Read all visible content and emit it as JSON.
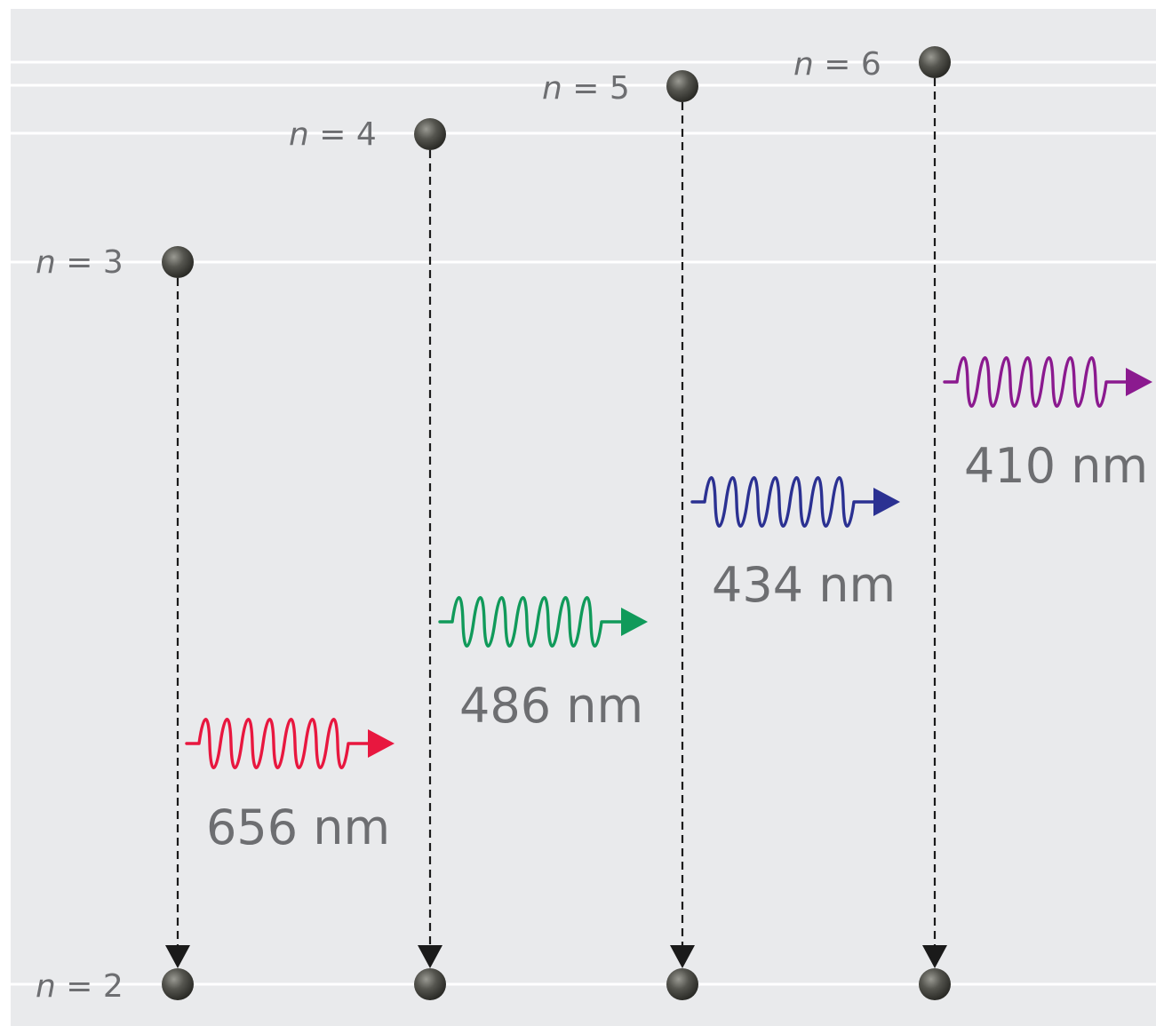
{
  "diagram": {
    "background": "#e9eaec",
    "line_color": "#ffffff",
    "label_color": "#6d6e71",
    "electron_color": "#4a4a45",
    "arrow_color": "#1a1a1a",
    "levels": [
      {
        "n": 2,
        "label_n": "n",
        "label_rest": " = 2"
      },
      {
        "n": 3,
        "label_n": "n",
        "label_rest": " = 3"
      },
      {
        "n": 4,
        "label_n": "n",
        "label_rest": " = 4"
      },
      {
        "n": 5,
        "label_n": "n",
        "label_rest": " = 5"
      },
      {
        "n": 6,
        "label_n": "n",
        "label_rest": " = 6"
      }
    ],
    "transitions": [
      {
        "from": 3,
        "to": 2,
        "wavelength": "656 nm",
        "color": "#e8173f",
        "icon": "photon-wave-icon"
      },
      {
        "from": 4,
        "to": 2,
        "wavelength": "486 nm",
        "color": "#109a5a",
        "icon": "photon-wave-icon"
      },
      {
        "from": 5,
        "to": 2,
        "wavelength": "434 nm",
        "color": "#2b3192",
        "icon": "photon-wave-icon"
      },
      {
        "from": 6,
        "to": 2,
        "wavelength": "410 nm",
        "color": "#8b1a8f",
        "icon": "photon-wave-icon"
      }
    ]
  }
}
